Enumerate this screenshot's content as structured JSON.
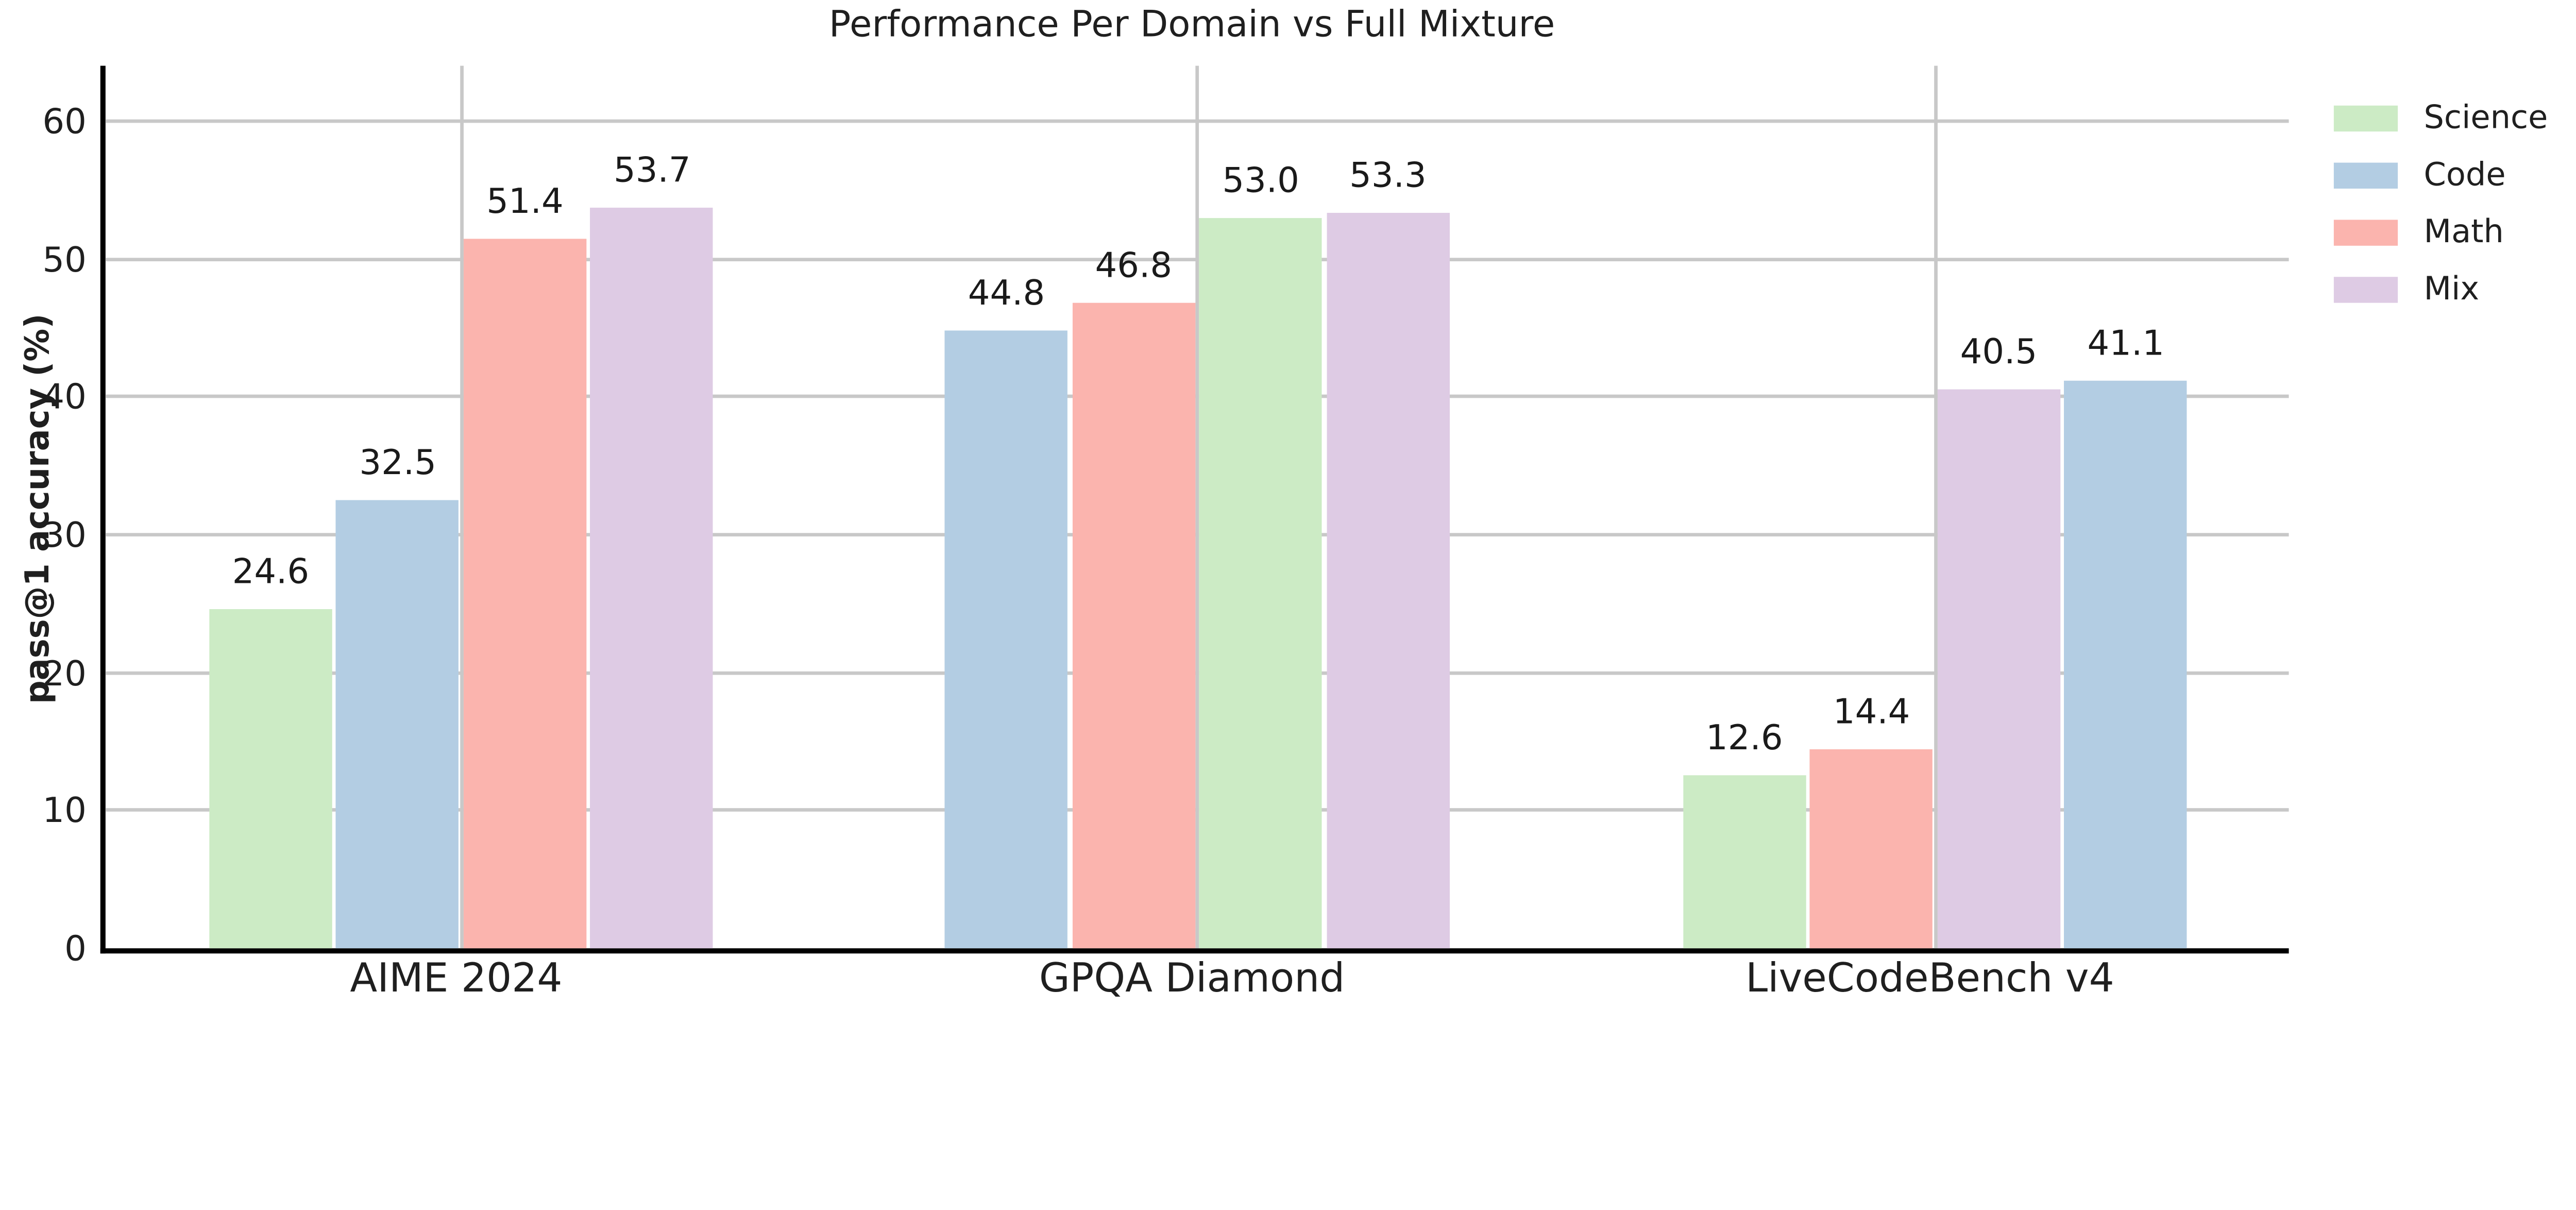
{
  "chart_data": {
    "type": "bar",
    "title": "Performance Per Domain vs Full Mixture",
    "xlabel": "",
    "ylabel": "pass@1 accuracy (%)",
    "ylim": [
      0,
      64
    ],
    "yticks": [
      0,
      10,
      20,
      30,
      40,
      50,
      60
    ],
    "grid": "both axes, light gray, drawn behind bars",
    "value_label_decimals": 1,
    "categories": [
      "AIME 2024",
      "GPQA Diamond",
      "LiveCodeBench v4"
    ],
    "legend": {
      "position": "upper right, outside plot area",
      "entries": [
        {
          "label": "Science",
          "color": "#ccebc5"
        },
        {
          "label": "Code",
          "color": "#b3cde3"
        },
        {
          "label": "Math",
          "color": "#fbb4ae"
        },
        {
          "label": "Mix",
          "color": "#decbe4"
        }
      ]
    },
    "groups": [
      {
        "category": "AIME 2024",
        "bars": [
          {
            "series": "Science",
            "value": 24.6
          },
          {
            "series": "Code",
            "value": 32.5
          },
          {
            "series": "Math",
            "value": 51.4
          },
          {
            "series": "Mix",
            "value": 53.7
          }
        ]
      },
      {
        "category": "GPQA Diamond",
        "bars": [
          {
            "series": "Code",
            "value": 44.8
          },
          {
            "series": "Math",
            "value": 46.8
          },
          {
            "series": "Science",
            "value": 53.0
          },
          {
            "series": "Mix",
            "value": 53.3
          }
        ]
      },
      {
        "category": "LiveCodeBench v4",
        "bars": [
          {
            "series": "Science",
            "value": 12.6
          },
          {
            "series": "Math",
            "value": 14.4
          },
          {
            "series": "Mix",
            "value": 40.5
          },
          {
            "series": "Code",
            "value": 41.1
          }
        ]
      }
    ],
    "colors": {
      "text": "#1f1f1f",
      "grid": "#c8c8c8",
      "spine": "#000000",
      "background": "#ffffff"
    }
  }
}
